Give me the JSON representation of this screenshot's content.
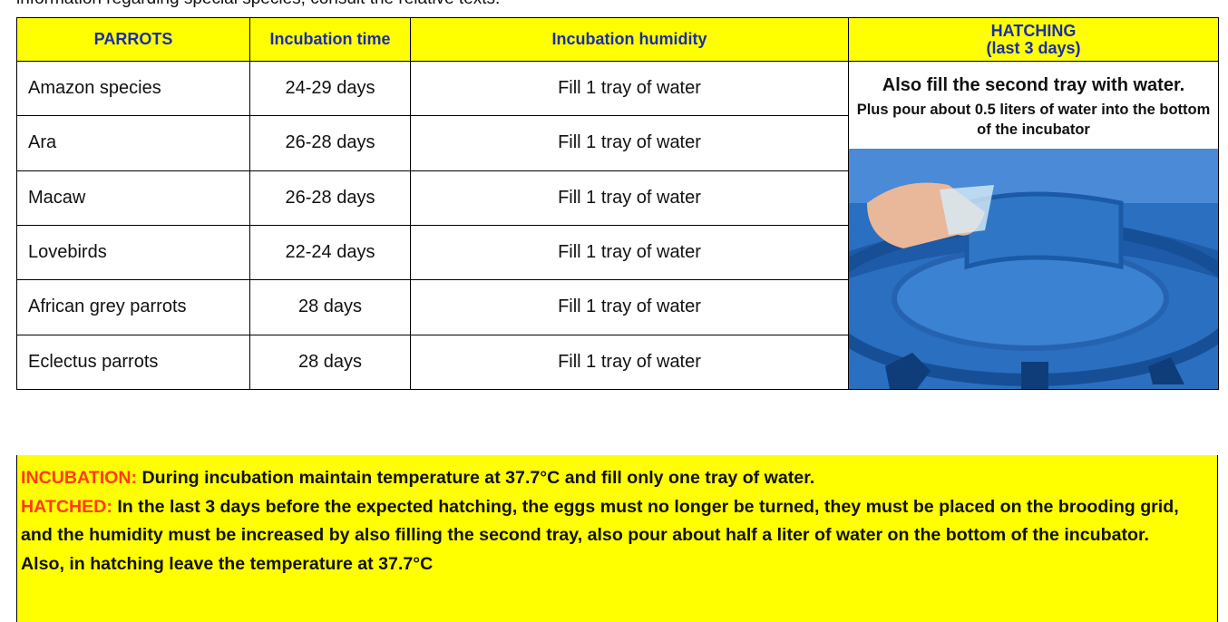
{
  "intro": "information regarding special species, consult the relative texts.",
  "table": {
    "header": [
      "PARROTS",
      "Incubation time",
      "Incubation humidity",
      "HATCHING",
      "(last 3 days)"
    ],
    "rows": [
      [
        "Amazon species",
        "24-29 days",
        "Fill 1 tray of water"
      ],
      [
        "Ara",
        "26-28 days",
        "Fill 1 tray of water"
      ],
      [
        "Macaw",
        "26-28 days",
        "Fill 1 tray of water"
      ],
      [
        "Lovebirds",
        "22-24 days",
        "Fill 1 tray of water"
      ],
      [
        "African grey parrots",
        "28 days",
        "Fill 1 tray of water"
      ],
      [
        "Eclectus parrots",
        "28 days",
        "Fill 1 tray of water"
      ]
    ],
    "hatching": {
      "main": "Also fill the second tray with water.",
      "sub": "Plus pour about 0.5 liters of water into the bottom of the incubator"
    }
  },
  "notes": [
    {
      "label": "INCUBATION:",
      "text": "During incubation maintain temperature at 37.7°C and fill only one tray of water."
    },
    {
      "label": "HATCHED:",
      "text": "In the last 3 days before the expected hatching, the eggs must no longer be turned, they must be placed on the brooding grid, and the humidity must be increased by also filling the second tray, also pour about half a liter of water on the bottom of the incubator."
    },
    {
      "text": "Also, in hatching leave the temperature at 37.7°C"
    }
  ]
}
